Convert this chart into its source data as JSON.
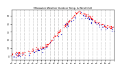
{
  "title": "Milwaukee Weather Outdoor Temp. & Wind Chill",
  "bg_color": "#ffffff",
  "plot_bg_color": "#ffffff",
  "temp_color": "#ff0000",
  "windchill_color": "#0000bb",
  "grid_color": "#888888",
  "ylim": [
    -5,
    58
  ],
  "xlim": [
    0,
    1440
  ],
  "num_points": 1440,
  "seed": 7
}
